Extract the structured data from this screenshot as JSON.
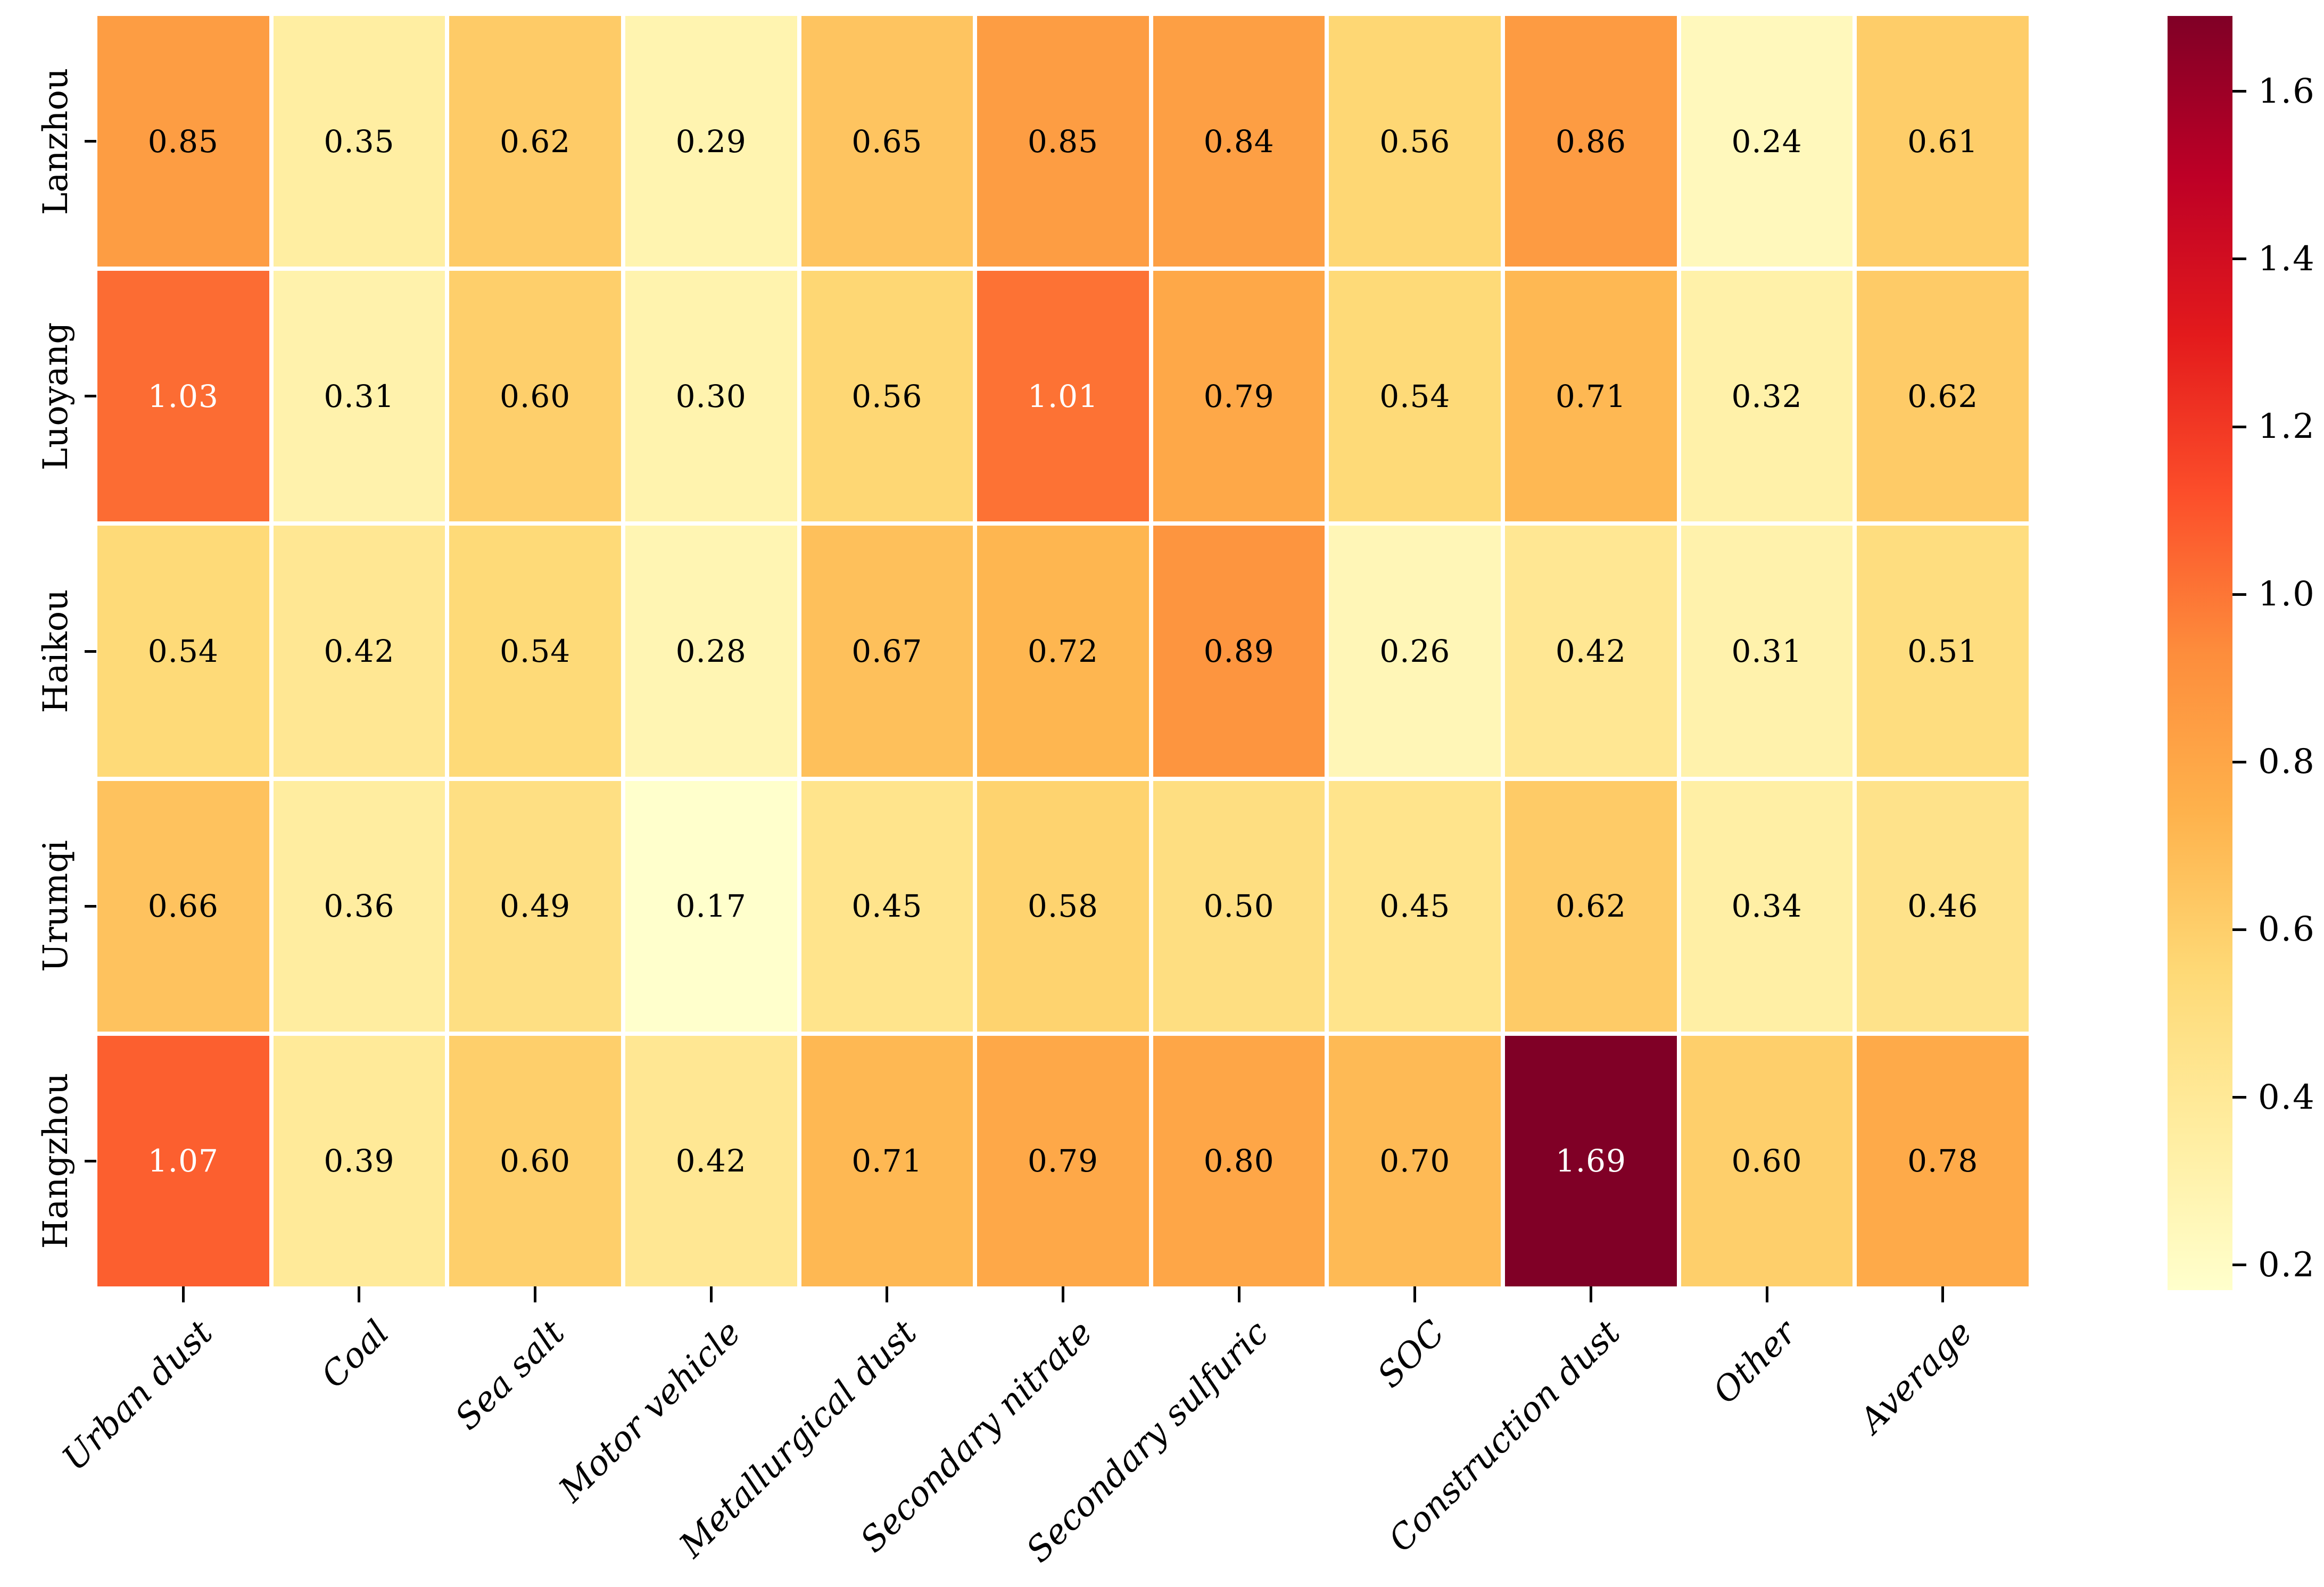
{
  "chart_data": {
    "type": "heatmap",
    "rows": [
      "Lanzhou",
      "Luoyang",
      "Haikou",
      "Urumqi",
      "Hangzhou"
    ],
    "columns": [
      "Urban dust",
      "Coal",
      "Sea salt",
      "Motor vehicle",
      "Metallurgical dust",
      "Secondary nitrate",
      "Secondary sulfuric",
      "SOC",
      "Construction dust",
      "Other",
      "Average"
    ],
    "values": [
      [
        0.85,
        0.35,
        0.62,
        0.29,
        0.65,
        0.85,
        0.84,
        0.56,
        0.86,
        0.24,
        0.61
      ],
      [
        1.03,
        0.31,
        0.6,
        0.3,
        0.56,
        1.01,
        0.79,
        0.54,
        0.71,
        0.32,
        0.62
      ],
      [
        0.54,
        0.42,
        0.54,
        0.28,
        0.67,
        0.72,
        0.89,
        0.26,
        0.42,
        0.31,
        0.51
      ],
      [
        0.66,
        0.36,
        0.49,
        0.17,
        0.45,
        0.58,
        0.5,
        0.45,
        0.62,
        0.34,
        0.46
      ],
      [
        1.07,
        0.39,
        0.6,
        0.42,
        0.71,
        0.79,
        0.8,
        0.7,
        1.69,
        0.6,
        0.78
      ]
    ],
    "value_format_decimals": 2,
    "vmin": 0.17,
    "vmax": 1.69,
    "colormap": {
      "name": "YlOrRd",
      "stops": [
        "#ffffcc",
        "#ffeda0",
        "#fed976",
        "#feb24c",
        "#fd8d3c",
        "#fc4e2a",
        "#e31a1c",
        "#bd0026",
        "#800026"
      ]
    },
    "colorbar_ticks": [
      "0.2",
      "0.4",
      "0.6",
      "0.8",
      "1.0",
      "1.2",
      "1.4",
      "1.6"
    ],
    "grid_line_color": "#ffffff",
    "annotation_color_dark": "#000000",
    "annotation_color_light": "#ffffff",
    "luminance_threshold": 0.408,
    "legend_position": "right",
    "title": "",
    "xlabel": "",
    "ylabel": ""
  }
}
